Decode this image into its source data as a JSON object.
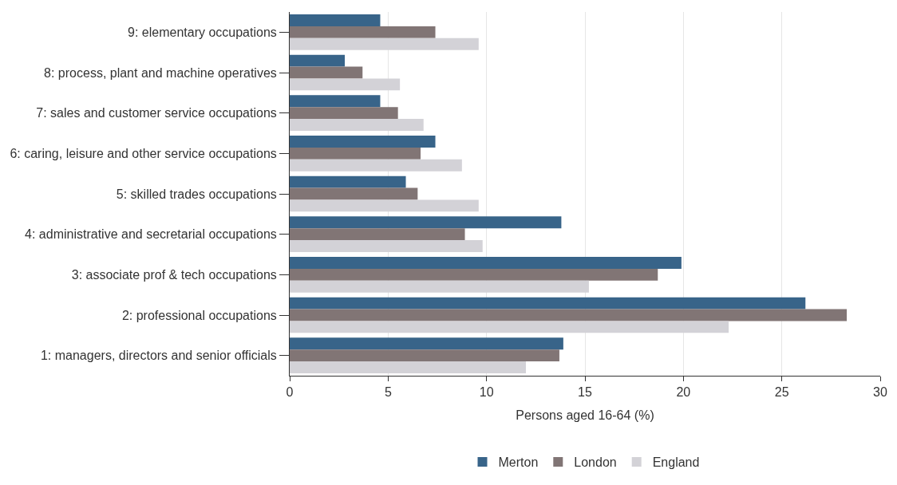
{
  "chart_data": {
    "type": "bar",
    "orientation": "horizontal",
    "xlabel": "Persons aged 16-64 (%)",
    "categories": [
      "9: elementary occupations",
      "8: process, plant and machine operatives",
      "7: sales and customer service occupations",
      "6: caring, leisure and other service occupations",
      "5: skilled trades occupations",
      "4: administrative and secretarial occupations",
      "3: associate prof & tech occupations",
      "2: professional occupations",
      "1: managers, directors and senior officials"
    ],
    "series": [
      {
        "name": "Merton",
        "color": "#386489",
        "values": [
          4.6,
          2.8,
          4.6,
          7.4,
          5.9,
          13.8,
          19.9,
          26.2,
          13.9
        ]
      },
      {
        "name": "London",
        "color": "#817575",
        "values": [
          7.4,
          3.7,
          5.5,
          6.65,
          6.5,
          8.9,
          18.7,
          28.3,
          13.7
        ]
      },
      {
        "name": "England",
        "color": "#d3d2d7",
        "values": [
          9.6,
          5.6,
          6.8,
          8.75,
          9.6,
          9.8,
          15.2,
          22.3,
          12.0
        ]
      }
    ],
    "xlim": [
      0,
      30
    ],
    "xticks": [
      0,
      5,
      10,
      15,
      20,
      25,
      30
    ],
    "grid": "x",
    "legend": "bottom"
  }
}
